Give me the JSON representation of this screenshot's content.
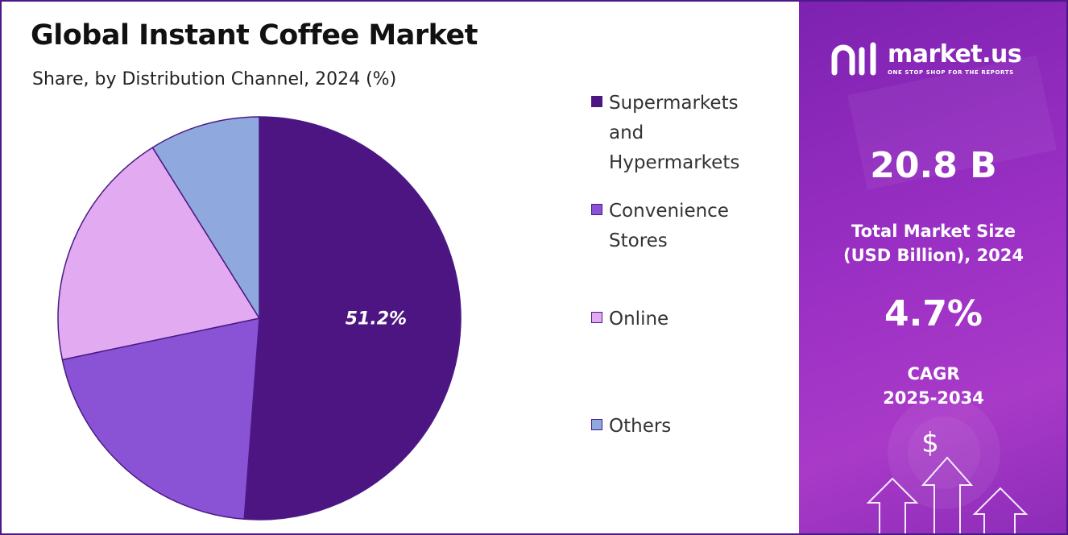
{
  "header": {
    "title": "Global Instant Coffee Market",
    "subtitle": "Share, by Distribution Channel, 2024 (%)"
  },
  "colors": {
    "supermarkets": "#4c1582",
    "convenience": "#8a53d6",
    "online": "#e2aaf0",
    "others": "#8fa9de",
    "border": "#4b1a86"
  },
  "chart_data": {
    "type": "pie",
    "title": "Global Instant Coffee Market",
    "subtitle": "Share, by Distribution Channel, 2024 (%)",
    "slices": [
      {
        "label": "Supermarkets and Hypermarkets",
        "value": 51.2,
        "color": "#4c1582",
        "data_label": "51.2%"
      },
      {
        "label": "Convenience Stores",
        "value": 20.5,
        "color": "#8a53d6",
        "data_label": ""
      },
      {
        "label": "Online",
        "value": 19.4,
        "color": "#e2aaf0",
        "data_label": ""
      },
      {
        "label": "Others",
        "value": 8.9,
        "color": "#8fa9de",
        "data_label": ""
      }
    ],
    "legend_position": "right"
  },
  "legend": {
    "items": [
      {
        "lines": [
          "Supermarkets",
          "and",
          "Hypermarkets"
        ],
        "color": "#4c1582"
      },
      {
        "lines": [
          "Convenience",
          "Stores"
        ],
        "color": "#8a53d6"
      },
      {
        "lines": [
          "Online"
        ],
        "color": "#e2aaf0"
      },
      {
        "lines": [
          "Others"
        ],
        "color": "#8fa9de"
      }
    ]
  },
  "sidebar": {
    "brand_name": "market.us",
    "brand_tagline": "ONE STOP SHOP FOR THE REPORTS",
    "logo_icon": "market-us-logo-icon",
    "market_size_value": "20.8 B",
    "market_size_label_line1": "Total Market Size",
    "market_size_label_line2": "(USD Billion), 2024",
    "cagr_value": "4.7%",
    "cagr_label_line1": "CAGR",
    "cagr_label_line2": "2025-2034",
    "dollar_symbol": "$",
    "decor_icon": "growth-arrows-icon"
  }
}
